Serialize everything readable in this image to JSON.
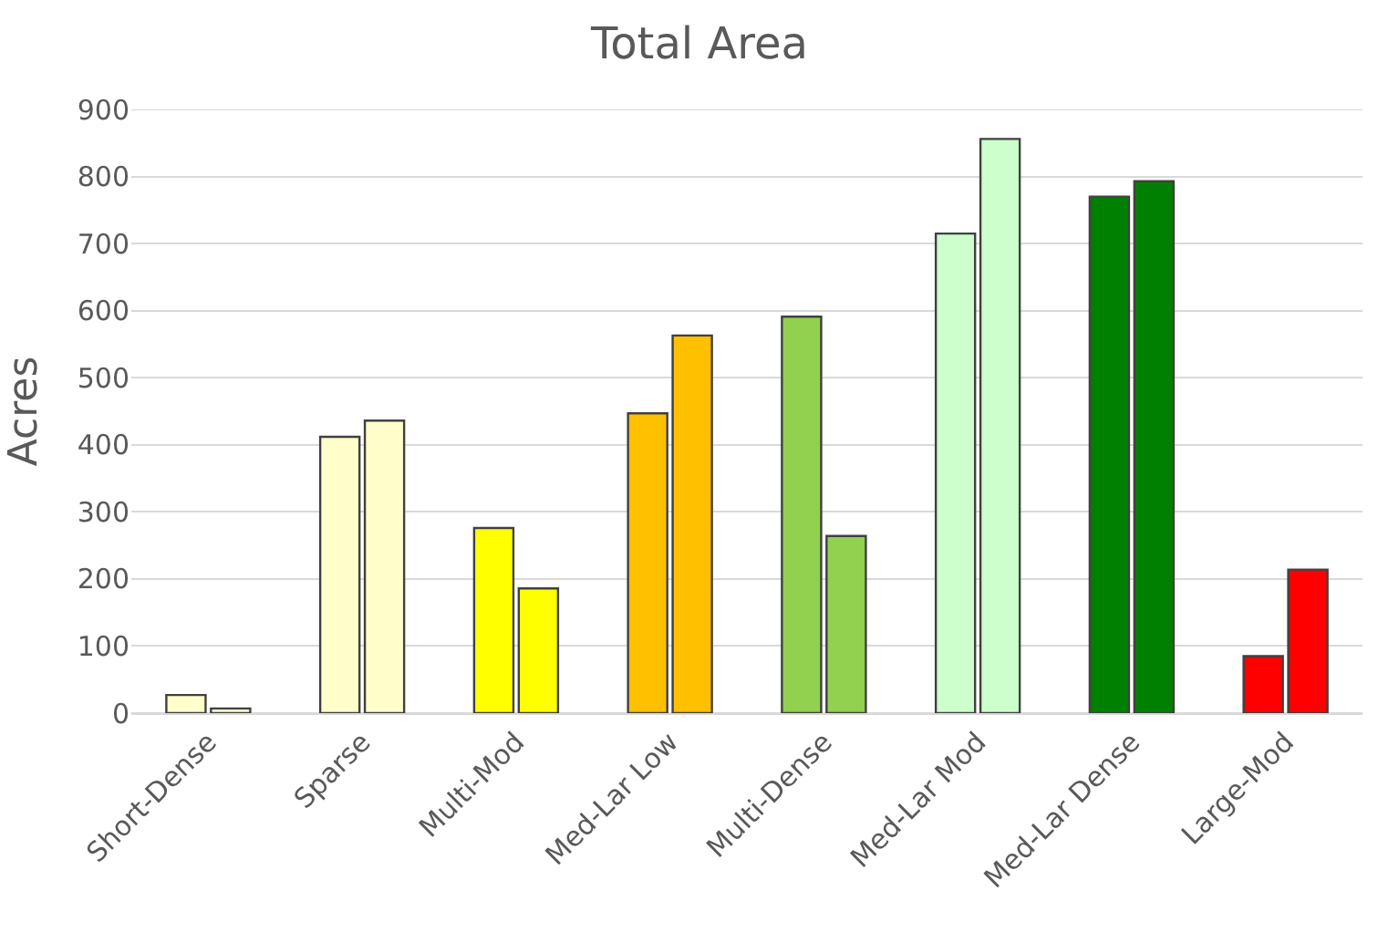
{
  "chart_data": {
    "type": "bar",
    "title": "Total Area",
    "ylabel": "Acres",
    "categories": [
      "Short-Dense",
      "Sparse",
      "Multi-Mod",
      "Med-Lar Low",
      "Multi-Dense",
      "Med-Lar Mod",
      "Med-Lar Dense",
      "Large-Mod"
    ],
    "series": [
      {
        "colors": [
          "#ffffcc",
          "#ffffcc",
          "#ffff00",
          "#ffc000",
          "#92d050",
          "#ccffcc",
          "#008000",
          "#ff0000"
        ],
        "values": [
          27,
          412,
          276,
          447,
          591,
          715,
          770,
          85
        ]
      },
      {
        "colors": [
          "#ffffcc",
          "#ffffcc",
          "#ffff00",
          "#ffc000",
          "#92d050",
          "#ccffcc",
          "#008000",
          "#ff0000"
        ],
        "values": [
          7,
          436,
          186,
          563,
          264,
          856,
          793,
          214
        ]
      }
    ],
    "ylim": [
      0,
      900
    ],
    "yticks": [
      0,
      100,
      200,
      300,
      400,
      500,
      600,
      700,
      800,
      900
    ],
    "grid": "y"
  }
}
